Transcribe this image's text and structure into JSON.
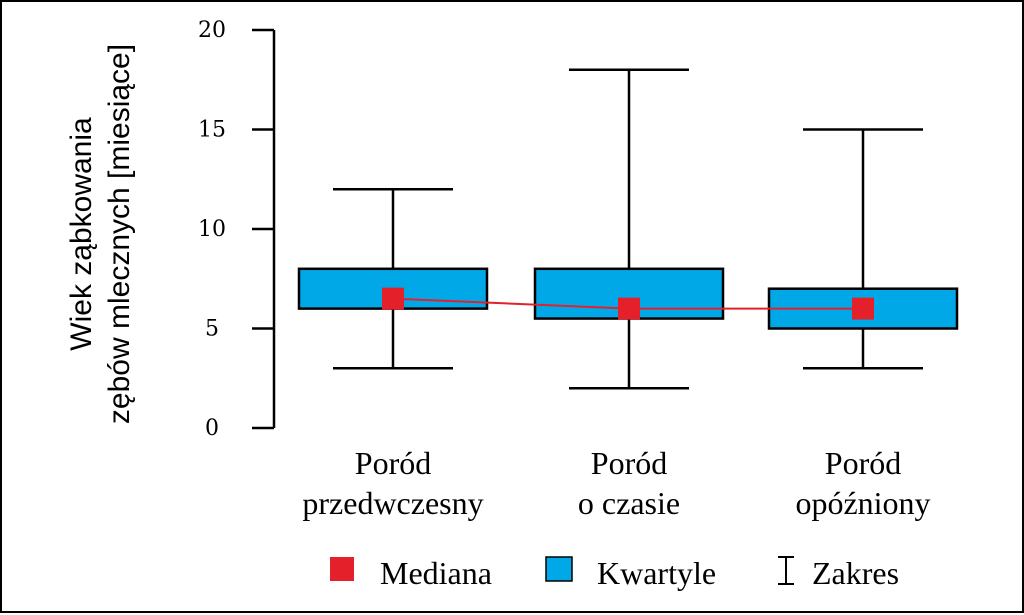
{
  "chart_data": {
    "type": "boxplot",
    "ylabel_lines": [
      "Wiek ząbkowania",
      "zębów mlecznych [miesiące]"
    ],
    "ylim": [
      0,
      20
    ],
    "yticks": [
      0,
      5,
      10,
      15,
      20
    ],
    "categories": [
      {
        "lines": [
          "Poród",
          "przedwczesny"
        ]
      },
      {
        "lines": [
          "Poród",
          "o czasie"
        ]
      },
      {
        "lines": [
          "Poród",
          "opóźniony"
        ]
      }
    ],
    "boxes": [
      {
        "min": 3,
        "q1": 6,
        "median": 6.5,
        "q3": 8,
        "max": 12
      },
      {
        "min": 2,
        "q1": 5.5,
        "median": 6,
        "q3": 8,
        "max": 18
      },
      {
        "min": 3,
        "q1": 5,
        "median": 6,
        "q3": 7,
        "max": 15
      }
    ],
    "median_line": true,
    "legend": {
      "placement": "bottom",
      "items": [
        {
          "label": "Mediana",
          "kind": "median-square"
        },
        {
          "label": "Kwartyle",
          "kind": "box"
        },
        {
          "label": "Zakres",
          "kind": "range"
        }
      ]
    },
    "colors": {
      "box_fill": "#00a8e8",
      "median": "#e4202a",
      "stroke": "#000000"
    }
  }
}
